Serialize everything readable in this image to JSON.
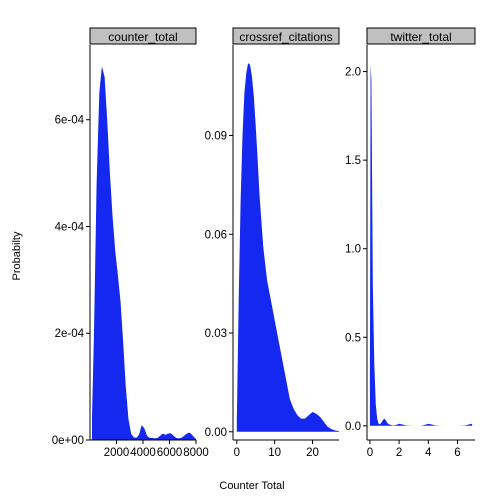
{
  "chart_data": {
    "type": "area",
    "title": "",
    "xlabel": "Counter Total",
    "ylabel": "Probabilty",
    "fill_color": "#1428f0",
    "strip_color": "#c0c0c0",
    "grid": false,
    "panels": [
      {
        "name": "counter_total",
        "xlim": [
          0,
          8000
        ],
        "ylim": [
          0,
          0.00074
        ],
        "x_ticks": [
          2000,
          4000,
          6000,
          8000
        ],
        "x_tick_labels": [
          "2000",
          "4000",
          "6000",
          "8000"
        ],
        "y_ticks": [
          0,
          0.0002,
          0.0004,
          0.0006
        ],
        "y_tick_labels": [
          "0e+00",
          "2e-04",
          "4e-04",
          "6e-04"
        ],
        "x": [
          150,
          300,
          500,
          700,
          900,
          1100,
          1300,
          1500,
          1700,
          1900,
          2100,
          2300,
          2500,
          2700,
          2900,
          3100,
          3300,
          3500,
          3700,
          3900,
          4100,
          4300,
          4500,
          4700,
          4900,
          5100,
          5300,
          5500,
          5700,
          5900,
          6100,
          6300,
          6500,
          6700,
          6900,
          7100,
          7300,
          7500,
          7700,
          7900,
          8000
        ],
        "y": [
          4.5e-05,
          0.0002,
          0.00048,
          0.00065,
          0.0007,
          0.00068,
          0.0006,
          0.0005,
          0.00042,
          0.000355,
          0.00031,
          0.00026,
          0.000185,
          0.0001,
          4e-05,
          1.2e-05,
          5e-06,
          4e-06,
          1e-05,
          2.8e-05,
          2.2e-05,
          8e-06,
          4e-06,
          4e-06,
          3e-06,
          4e-06,
          8e-06,
          1.2e-05,
          1e-05,
          1.2e-05,
          1.3e-05,
          8e-06,
          4e-06,
          3e-06,
          4e-06,
          8e-06,
          1.2e-05,
          1.4e-05,
          1e-05,
          4e-06,
          2e-06
        ]
      },
      {
        "name": "crossref_citations",
        "xlim": [
          -1,
          27
        ],
        "ylim": [
          -0.0025,
          0.1175
        ],
        "x_ticks": [
          0,
          10,
          20
        ],
        "x_tick_labels": [
          "0",
          "10",
          "20"
        ],
        "y_ticks": [
          0,
          0.03,
          0.06,
          0.09
        ],
        "y_tick_labels": [
          "0.00",
          "0.03",
          "0.06",
          "0.09"
        ],
        "x": [
          0,
          0.5,
          1,
          1.5,
          2,
          2.5,
          3,
          3.5,
          4,
          4.5,
          5,
          5.5,
          6,
          7,
          8,
          9,
          10,
          11,
          12,
          13,
          14,
          15,
          16,
          17,
          18,
          19,
          20,
          21,
          22,
          23,
          24,
          25,
          26,
          27
        ],
        "y": [
          0.003,
          0.04,
          0.07,
          0.09,
          0.103,
          0.109,
          0.112,
          0.1115,
          0.108,
          0.102,
          0.093,
          0.083,
          0.072,
          0.056,
          0.046,
          0.04,
          0.034,
          0.028,
          0.022,
          0.016,
          0.01,
          0.007,
          0.005,
          0.004,
          0.004,
          0.005,
          0.006,
          0.0055,
          0.0045,
          0.003,
          0.0015,
          0.0008,
          0.0004,
          0.0002
        ]
      },
      {
        "name": "twitter_total",
        "xlim": [
          -0.2,
          7.2
        ],
        "ylim": [
          -0.08,
          2.15
        ],
        "x_ticks": [
          0,
          2,
          4,
          6
        ],
        "x_tick_labels": [
          "0",
          "2",
          "4",
          "6"
        ],
        "y_ticks": [
          0,
          0.5,
          1,
          1.5,
          2
        ],
        "y_tick_labels": [
          "0.0",
          "0.5",
          "1.0",
          "1.5",
          "2.0"
        ],
        "x": [
          0,
          0.05,
          0.1,
          0.15,
          0.2,
          0.3,
          0.4,
          0.5,
          0.6,
          0.7,
          0.8,
          0.9,
          1.0,
          1.1,
          1.2,
          1.4,
          1.6,
          1.8,
          2.0,
          2.2,
          2.5,
          3.0,
          3.5,
          3.8,
          4.0,
          4.2,
          4.5,
          5.0,
          5.5,
          6.0,
          6.5,
          6.8,
          7.0
        ],
        "y": [
          0.3,
          2.04,
          1.95,
          1.4,
          0.8,
          0.35,
          0.12,
          0.04,
          0.01,
          0.01,
          0.02,
          0.035,
          0.04,
          0.03,
          0.015,
          0.005,
          0.002,
          0.005,
          0.012,
          0.008,
          0.002,
          0.001,
          0.001,
          0.006,
          0.012,
          0.008,
          0.002,
          0.001,
          0.001,
          0.001,
          0.002,
          0.008,
          0.012
        ]
      }
    ]
  }
}
